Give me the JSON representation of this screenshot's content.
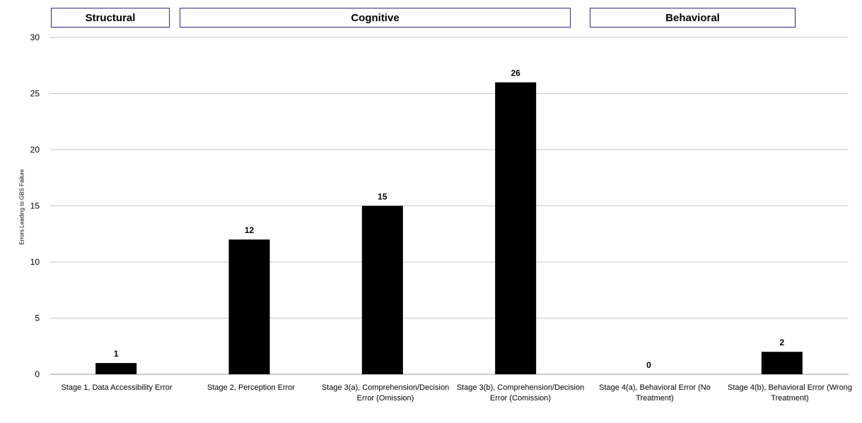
{
  "chart_data": {
    "type": "bar",
    "groups": [
      {
        "label": "Structural"
      },
      {
        "label": "Cognitive"
      },
      {
        "label": "Behavioral"
      }
    ],
    "categories": [
      "Stage 1, Data Accessibility Error",
      "Stage 2, Perception Error",
      "Stage 3(a), Comprehension/Decision Error (Omission)",
      "Stage 3(b), Comprehension/Decision Error (Comission)",
      "Stage 4(a), Behavioral Error (No Treatment)",
      "Stage 4(b), Behavioral Error (Wrong Treatment)"
    ],
    "values": [
      1,
      12,
      15,
      26,
      0,
      2
    ],
    "data_labels": [
      "1",
      "12",
      "15",
      "26",
      "0",
      "2"
    ],
    "ylabel": "Errors Leading to GBS Failure",
    "ylim": [
      0,
      30
    ],
    "yticks": [
      0,
      5,
      10,
      15,
      20,
      25,
      30
    ],
    "ytick_labels": [
      "0",
      "5",
      "10",
      "15",
      "20",
      "25",
      "30"
    ],
    "grid": true,
    "bar_color": "#000000",
    "grid_color": "#c8c8c8",
    "group_border_color": "#2e2a7a"
  }
}
